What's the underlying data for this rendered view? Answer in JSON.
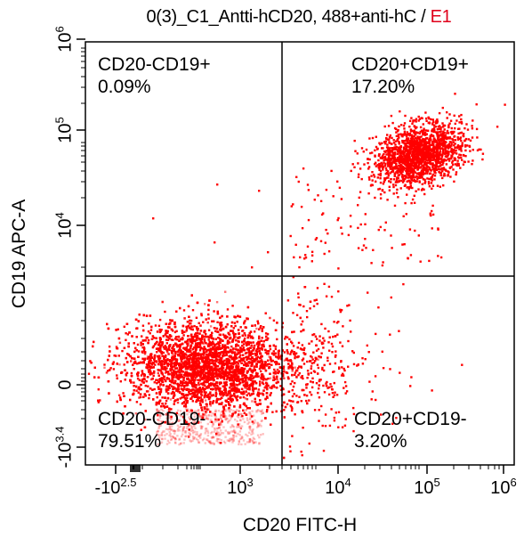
{
  "header": {
    "title": "0(3)_C1_Antti-hCD20, 488+anti-hC /",
    "gate": "E1"
  },
  "colors": {
    "events": "#ff0000",
    "gate": "#e0001b",
    "axis": "#000000"
  },
  "chart_data": {
    "type": "scatter",
    "title": "0(3)_C1_Antti-hCD20, 488+anti-hC / E1",
    "xlabel": "CD20 FITC-H",
    "ylabel": "CD19 APC-A",
    "x_scale": "biexponential",
    "y_scale": "biexponential",
    "xlim": [
      -316,
      1000000
    ],
    "ylim": [
      -2512,
      1000000
    ],
    "x_ticks": [
      {
        "base": "-10",
        "exp": "2.5"
      },
      {
        "base": "10",
        "exp": "3"
      },
      {
        "base": "10",
        "exp": "4"
      },
      {
        "base": "10",
        "exp": "5"
      },
      {
        "base": "10",
        "exp": "6"
      }
    ],
    "y_ticks": [
      {
        "base": "-10",
        "exp": "3.4"
      },
      {
        "base": "0",
        "exp": ""
      },
      {
        "base": "10",
        "exp": "4"
      },
      {
        "base": "10",
        "exp": "5"
      },
      {
        "base": "10",
        "exp": "6"
      }
    ],
    "quadrant_gates": {
      "x": 2500,
      "y": 2500
    },
    "quadrants": [
      {
        "name": "CD20-CD19+",
        "percent": "0.09%",
        "position": "top-left"
      },
      {
        "name": "CD20+CD19+",
        "percent": "17.20%",
        "position": "top-right"
      },
      {
        "name": "CD20-CD19-",
        "percent": "79.51%",
        "position": "bottom-left"
      },
      {
        "name": "CD20+CD19-",
        "percent": "3.20%",
        "position": "bottom-right"
      }
    ],
    "populations": [
      {
        "name": "CD20-CD19-",
        "fraction": 0.7951,
        "x_center": 100,
        "y_center": 0
      },
      {
        "name": "CD20+CD19+",
        "fraction": 0.172,
        "x_center": 100000,
        "y_center": 50000
      },
      {
        "name": "CD20+CD19-",
        "fraction": 0.032,
        "x_center": 8000,
        "y_center": 0
      },
      {
        "name": "CD20-CD19+",
        "fraction": 0.0009,
        "x_center": 500,
        "y_center": 15000
      }
    ],
    "grid": false,
    "legend": "none"
  }
}
